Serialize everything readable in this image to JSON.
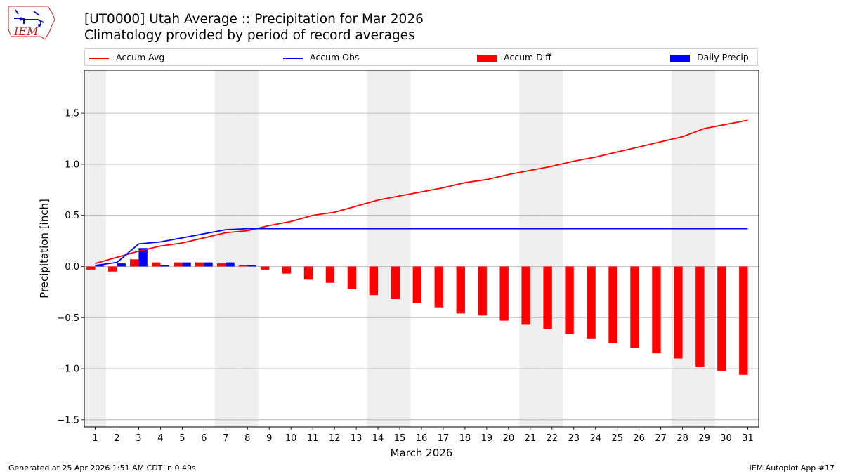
{
  "header": {
    "title_line1": "[UT0000] Utah Average :: Precipitation for Mar 2026",
    "title_line2": "Climatology provided by period of record averages",
    "logo_text": "IEM"
  },
  "legend": {
    "items": [
      {
        "label": "Accum Avg",
        "kind": "line",
        "color": "#ff0000"
      },
      {
        "label": "Accum Obs",
        "kind": "line",
        "color": "#0000ff"
      },
      {
        "label": "Accum Diff",
        "kind": "bar",
        "color": "#ff0000"
      },
      {
        "label": "Daily Precip",
        "kind": "bar",
        "color": "#0000ff"
      }
    ]
  },
  "footer": {
    "left": "Generated at 25 Apr 2026 1:51 AM CDT in 0.49s",
    "right": "IEM Autoplot App #17"
  },
  "chart_data": {
    "type": "bar",
    "title": "[UT0000] Utah Average :: Precipitation for Mar 2026",
    "subtitle": "Climatology provided by period of record averages",
    "xlabel": "March 2026",
    "ylabel": "Precipitation [inch]",
    "ylim": [
      -1.57,
      1.92
    ],
    "yticks": [
      -1.5,
      -1.0,
      -0.5,
      0.0,
      0.5,
      1.0,
      1.5
    ],
    "ytick_labels": [
      "−1.5",
      "−1.0",
      "−0.5",
      "0.0",
      "0.5",
      "1.0",
      "1.5"
    ],
    "grid": "horizontal",
    "legend_position": "top",
    "x": [
      1,
      2,
      3,
      4,
      5,
      6,
      7,
      8,
      9,
      10,
      11,
      12,
      13,
      14,
      15,
      16,
      17,
      18,
      19,
      20,
      21,
      22,
      23,
      24,
      25,
      26,
      27,
      28,
      29,
      30,
      31
    ],
    "weekend_days": [
      1,
      7,
      8,
      14,
      15,
      21,
      22,
      28,
      29
    ],
    "series": [
      {
        "name": "Accum Avg",
        "kind": "line",
        "color": "#ff0000",
        "values": [
          0.03,
          0.09,
          0.15,
          0.2,
          0.23,
          0.28,
          0.33,
          0.35,
          0.4,
          0.44,
          0.5,
          0.53,
          0.59,
          0.65,
          0.69,
          0.73,
          0.77,
          0.82,
          0.85,
          0.9,
          0.94,
          0.98,
          1.03,
          1.07,
          1.12,
          1.17,
          1.22,
          1.27,
          1.35,
          1.39,
          1.43
        ]
      },
      {
        "name": "Accum Obs",
        "kind": "line",
        "color": "#0000ff",
        "values": [
          0.01,
          0.04,
          0.22,
          0.24,
          0.28,
          0.32,
          0.36,
          0.37,
          0.37,
          0.37,
          0.37,
          0.37,
          0.37,
          0.37,
          0.37,
          0.37,
          0.37,
          0.37,
          0.37,
          0.37,
          0.37,
          0.37,
          0.37,
          0.37,
          0.37,
          0.37,
          0.37,
          0.37,
          0.37,
          0.37,
          0.37
        ]
      },
      {
        "name": "Accum Diff",
        "kind": "bar",
        "color": "#ff0000",
        "values": [
          -0.03,
          -0.05,
          0.07,
          0.04,
          0.04,
          0.04,
          0.03,
          0.01,
          -0.03,
          -0.07,
          -0.13,
          -0.16,
          -0.22,
          -0.28,
          -0.32,
          -0.36,
          -0.4,
          -0.46,
          -0.48,
          -0.53,
          -0.57,
          -0.61,
          -0.66,
          -0.71,
          -0.75,
          -0.8,
          -0.85,
          -0.9,
          -0.98,
          -1.02,
          -1.06
        ]
      },
      {
        "name": "Daily Precip",
        "kind": "bar",
        "color": "#0000ff",
        "values": [
          0.01,
          0.03,
          0.18,
          0.01,
          0.04,
          0.04,
          0.04,
          0.01,
          0,
          0,
          0,
          0,
          0,
          0,
          0,
          0,
          0,
          0,
          0,
          0,
          0,
          0,
          0,
          0,
          0,
          0,
          0,
          0,
          0,
          0,
          0
        ]
      }
    ]
  }
}
